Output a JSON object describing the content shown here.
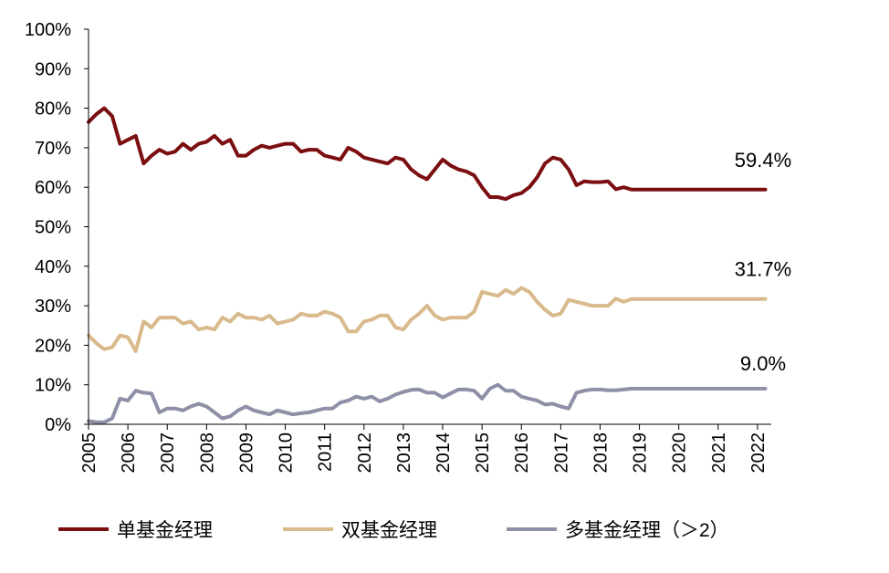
{
  "chart_data": {
    "type": "line",
    "ylim": [
      0,
      100
    ],
    "y_ticks": [
      "0%",
      "10%",
      "20%",
      "30%",
      "40%",
      "50%",
      "60%",
      "70%",
      "80%",
      "90%",
      "100%"
    ],
    "x_range": [
      2005,
      2022.35
    ],
    "x_ticks": [
      "2005",
      "2006",
      "2007",
      "2008",
      "2009",
      "2010",
      "2011",
      "2012",
      "2013",
      "2014",
      "2015",
      "2016",
      "2017",
      "2018",
      "2019",
      "2020",
      "2021",
      "2022"
    ],
    "grid": false,
    "legend": "bottom",
    "x": [
      2005.0,
      2005.2,
      2005.4,
      2005.6,
      2005.8,
      2006.0,
      2006.2,
      2006.4,
      2006.6,
      2006.8,
      2007.0,
      2007.2,
      2007.4,
      2007.6,
      2007.8,
      2008.0,
      2008.2,
      2008.4,
      2008.6,
      2008.8,
      2009.0,
      2009.2,
      2009.4,
      2009.6,
      2009.8,
      2010.0,
      2010.2,
      2010.4,
      2010.6,
      2010.8,
      2011.0,
      2011.2,
      2011.4,
      2011.6,
      2011.8,
      2012.0,
      2012.2,
      2012.4,
      2012.6,
      2012.8,
      2013.0,
      2013.2,
      2013.4,
      2013.6,
      2013.8,
      2014.0,
      2014.2,
      2014.4,
      2014.6,
      2014.8,
      2015.0,
      2015.2,
      2015.4,
      2015.6,
      2015.8,
      2016.0,
      2016.2,
      2016.4,
      2016.6,
      2016.8,
      2017.0,
      2017.2,
      2017.4,
      2017.6,
      2017.8,
      2018.0,
      2018.2,
      2018.4,
      2018.6,
      2018.8,
      2019.0,
      2019.2,
      2019.4,
      2019.6,
      2019.8,
      2020.0,
      2020.2,
      2020.4,
      2020.6,
      2020.8,
      2021.0,
      2021.2,
      2021.4,
      2021.6,
      2021.8,
      2022.0,
      2022.2
    ],
    "series": [
      {
        "name": "单基金经理",
        "color": "#7b0e10",
        "end_label": "59.4%",
        "values": [
          76.5,
          78.5,
          80,
          78,
          71,
          72,
          73,
          66,
          68,
          69.5,
          68.5,
          69,
          71,
          69.5,
          71,
          71.5,
          73,
          71,
          72,
          68,
          68,
          69.5,
          70.5,
          70,
          70.5,
          71,
          71,
          69,
          69.5,
          69.5,
          68,
          67.5,
          67,
          70,
          69,
          67.5,
          67,
          66.5,
          66,
          67.5,
          67,
          64.5,
          63,
          62,
          64.5,
          67,
          65.5,
          64.5,
          64,
          63,
          60,
          57.5,
          57.5,
          57,
          58,
          58.5,
          60,
          62.5,
          66,
          67.5,
          67,
          64.5,
          60.5,
          61.5,
          61.3,
          61.3,
          61.5,
          59.5,
          60,
          59.4,
          59.4,
          59.4,
          59.4,
          59.4,
          59.4,
          59.4,
          59.4,
          59.4,
          59.4,
          59.4,
          59.4,
          59.4,
          59.4,
          59.4,
          59.4,
          59.4,
          59.4
        ]
      },
      {
        "name": "双基金经理",
        "color": "#d8ba8c",
        "end_label": "31.7%",
        "values": [
          22.5,
          20.5,
          19,
          19.5,
          22.5,
          22,
          18.5,
          26,
          24.5,
          27,
          27,
          27,
          25.5,
          26,
          24,
          24.5,
          24,
          27,
          26,
          28,
          27,
          27,
          26.5,
          27.5,
          25.5,
          26,
          26.5,
          28,
          27.5,
          27.5,
          28.5,
          28,
          27,
          23.5,
          23.5,
          26,
          26.5,
          27.5,
          27.5,
          24.5,
          24,
          26.5,
          28,
          30,
          27.5,
          26.5,
          27,
          27,
          27,
          28.5,
          33.5,
          33,
          32.5,
          34,
          33,
          34.5,
          33.5,
          31,
          29,
          27.5,
          28,
          31.5,
          31,
          30.5,
          30,
          30,
          30,
          31.8,
          31,
          31.7,
          31.7,
          31.7,
          31.7,
          31.7,
          31.7,
          31.7,
          31.7,
          31.7,
          31.7,
          31.7,
          31.7,
          31.7,
          31.7,
          31.7,
          31.7,
          31.7,
          31.7
        ]
      },
      {
        "name": "多基金经理（＞2）",
        "color": "#8e90a7",
        "end_label": "9.0%",
        "values": [
          0.8,
          0.5,
          0.5,
          1.5,
          6.5,
          6,
          8.5,
          8,
          7.8,
          3,
          4,
          4,
          3.5,
          4.5,
          5.2,
          4.5,
          3,
          1.5,
          2,
          3.5,
          4.5,
          3.5,
          3,
          2.5,
          3.5,
          3,
          2.5,
          2.8,
          3,
          3.5,
          4,
          4,
          5.5,
          6,
          7,
          6.5,
          7,
          5.8,
          6.5,
          7.5,
          8.2,
          8.7,
          8.8,
          8,
          8,
          6.8,
          7.8,
          8.8,
          8.8,
          8.5,
          6.5,
          9,
          10,
          8.5,
          8.5,
          7,
          6.5,
          6,
          5,
          5.2,
          4.5,
          4,
          8,
          8.5,
          8.8,
          8.8,
          8.6,
          8.6,
          8.8,
          9.0,
          9.0,
          9.0,
          9.0,
          9.0,
          9.0,
          9.0,
          9.0,
          9.0,
          9.0,
          9.0,
          9.0,
          9.0,
          9.0,
          9.0,
          9.0,
          9.0,
          9.0
        ]
      }
    ]
  }
}
